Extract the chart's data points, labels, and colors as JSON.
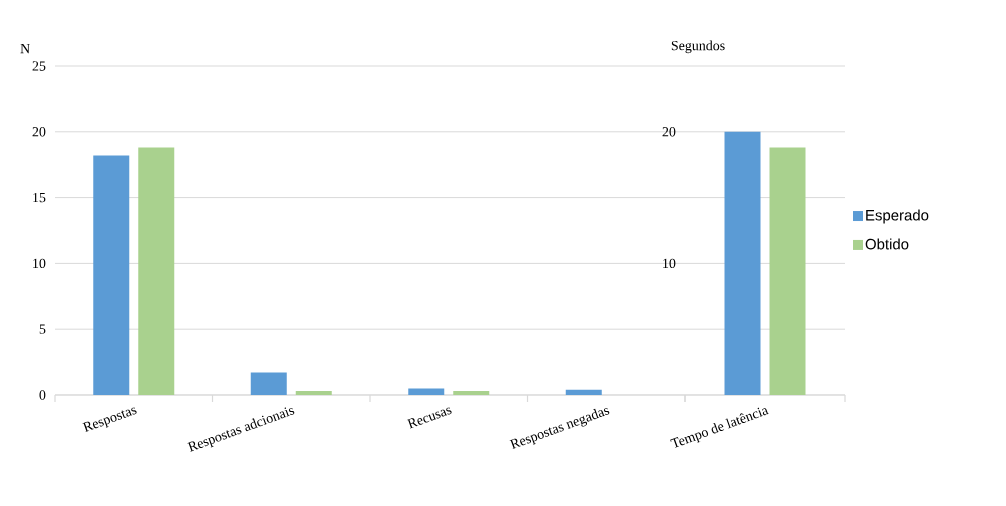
{
  "chart_data": [
    {
      "type": "bar",
      "ylabel": "N",
      "categories": [
        "Respostas",
        "Respostas adcionais",
        "Recusas",
        "Respostas negadas"
      ],
      "ylim": [
        0,
        25
      ],
      "yticks": [
        0,
        5,
        10,
        15,
        20,
        25
      ],
      "grid": "y",
      "legend": false,
      "series": [
        {
          "color": "#5b9bd5",
          "values": [
            18.2,
            1.7,
            0.5,
            0.4
          ]
        },
        {
          "color": "#a9d18e",
          "values": [
            18.8,
            0.3,
            0.3,
            0
          ]
        }
      ]
    },
    {
      "type": "bar",
      "ylabel": "Segundos",
      "categories": [
        "Tempo de latência"
      ],
      "ylim": [
        0,
        25
      ],
      "yticks": [
        {
          "value": 0,
          "label": null
        },
        {
          "value": 5,
          "label": null
        },
        10,
        {
          "value": 15,
          "label": null
        },
        20,
        {
          "value": 25,
          "label": null
        }
      ],
      "grid": "y",
      "legend": "right",
      "series": [
        {
          "name": "Esperado",
          "color": "#5b9bd5",
          "values": [
            20
          ]
        },
        {
          "name": "Obtido",
          "color": "#a9d18e",
          "values": [
            18.8
          ]
        }
      ]
    }
  ]
}
